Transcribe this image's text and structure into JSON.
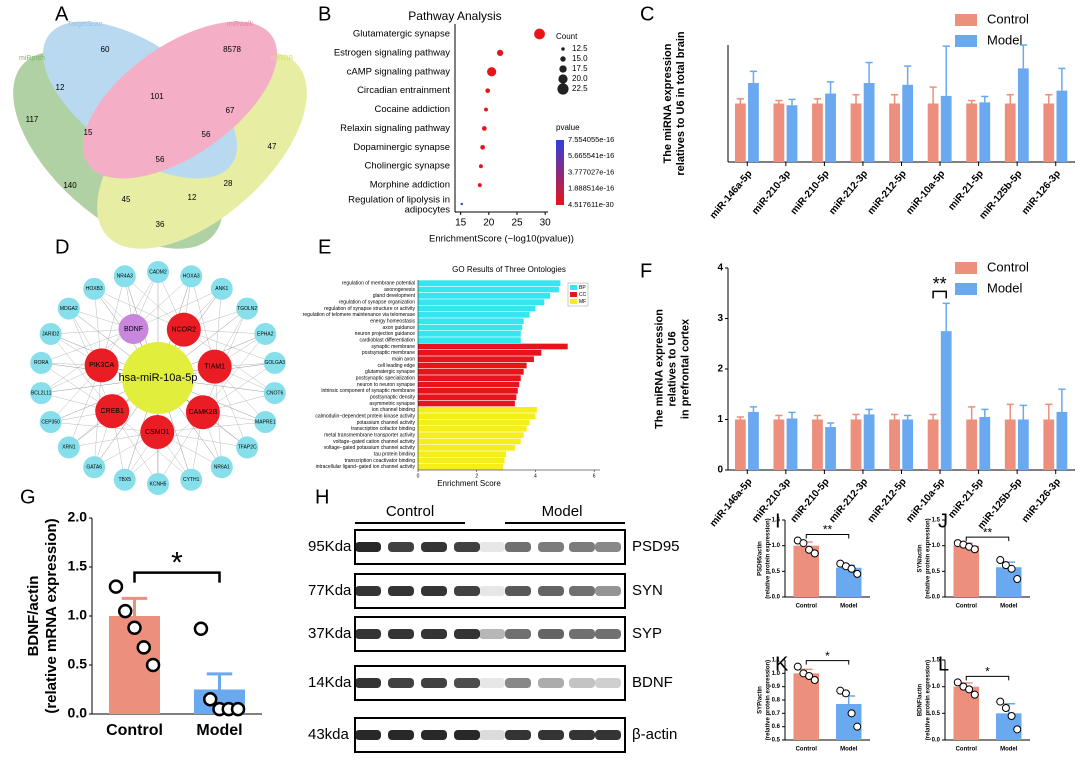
{
  "venn": {
    "label": "A",
    "sets": [
      "TargetScan",
      "miRwalk",
      "miRDB",
      "miRpath"
    ],
    "set_colors": [
      "#8fc3ea",
      "#ee7fa6",
      "#d9e36a",
      "#7fb56d"
    ],
    "regions": [
      60,
      8578,
      12,
      101,
      67,
      117,
      15,
      56,
      47,
      56,
      140,
      28,
      45,
      12,
      36
    ]
  },
  "network": {
    "label": "D",
    "center": "hsa-miR-10a-5p",
    "center_color": "#e2ee3c",
    "inner": [
      "BDNF",
      "NCOR2",
      "TIAM1",
      "CAMK2B",
      "CSMD1",
      "CREB1",
      "PIK3CA"
    ],
    "inner_colors": [
      "#c886dd",
      "#ea1c24",
      "#ea1c24",
      "#ea1c24",
      "#ea1c24",
      "#ea1c24",
      "#ea1c24"
    ],
    "outer": [
      "CADM2",
      "HOXA3",
      "ANK1",
      "TGOLN2",
      "EPHA2",
      "GOLGA3",
      "CNOT6",
      "MAPRE1",
      "TFAP2C",
      "NR6A1",
      "CYTH1",
      "KCNH5",
      "TBX5",
      "GATA6",
      "XRN1",
      "CEP350",
      "BCL2L11",
      "RORA",
      "JARID2",
      "MDGA2",
      "HOXB3",
      "NR4A3"
    ],
    "outer_color": "#86dfea"
  },
  "blot": {
    "label": "H",
    "groups": [
      "Control",
      "Model"
    ],
    "rows": [
      {
        "size": "95Kda",
        "protein": "PSD95"
      },
      {
        "size": "77Kda",
        "protein": "SYN"
      },
      {
        "size": "37Kda",
        "protein": "SYP"
      },
      {
        "size": "14Kda",
        "protein": "BDNF"
      },
      {
        "size": "43kda",
        "protein": "β-actin"
      }
    ]
  },
  "chart_data": [
    {
      "label": "B",
      "type": "dot",
      "title": "Pathway Analysis",
      "categories": [
        "Glutamatergic synapse",
        "Estrogen signaling pathway",
        "cAMP signaling pathway",
        "Circadian entrainment",
        "Cocaine addiction",
        "Relaxin signaling pathway",
        "Dopaminergic synapse",
        "Cholinergic synapse",
        "Morphine addiction",
        "Regulation of lipolysis in adipocytes"
      ],
      "values": [
        29,
        22,
        20.5,
        19.8,
        19.5,
        19.2,
        18.9,
        18.6,
        18.4,
        15.2
      ],
      "sizes": [
        22,
        16,
        20,
        14,
        13,
        14,
        14,
        13,
        13,
        11
      ],
      "pvalues": [
        4.517611e-30,
        1e-22,
        1e-21,
        1e-20,
        1e-20,
        1e-19,
        1e-19,
        1e-18,
        1e-18,
        7.554055e-16
      ],
      "xlabel": "EnrichmentScore (−log10(pvalue))",
      "xlim": [
        14,
        30.5
      ],
      "xticks": [
        15,
        20,
        25,
        30
      ],
      "size_legend_title": "Count",
      "size_ticks": [
        12.5,
        {
          "value": 15,
          "label": "15.0"
        },
        17.5,
        {
          "value": 20,
          "label": "20.0"
        },
        22.5
      ],
      "color_legend_title": "pvalue",
      "color_ticks": [
        7.554055e-16,
        5.665541e-16,
        3.777027e-16,
        1.888514e-16,
        4.517611e-30
      ],
      "color_range": [
        "#e8141b",
        "#2f3fe0"
      ]
    },
    {
      "label": "C",
      "type": "grouped_bar",
      "ylabel": [
        "The miRNA expression",
        "relatives to U6 in total brain"
      ],
      "categories": [
        "miR-146a-5p",
        "miR-210-3p",
        "miR-210-5p",
        "miR-212-3p",
        "miR-212-5p",
        "miR-10a-5p",
        "miR-21-5p",
        "miR-125b-5p",
        "miR-126-3p"
      ],
      "ylim": [
        0,
        2
      ],
      "series": [
        {
          "name": "Control",
          "color": "#ec8f7c",
          "values": [
            1,
            1,
            1,
            1,
            1,
            1,
            1,
            1,
            1
          ],
          "errors": [
            0.08,
            0.05,
            0.08,
            0.15,
            0.15,
            0.28,
            0.05,
            0.15,
            0.15
          ]
        },
        {
          "name": "Model",
          "color": "#6aa9f0",
          "values": [
            1.35,
            0.97,
            1.17,
            1.35,
            1.32,
            1.13,
            1.02,
            1.6,
            1.22
          ],
          "errors": [
            0.2,
            0.1,
            0.2,
            0.35,
            0.32,
            0.85,
            0.1,
            0.4,
            0.38
          ]
        }
      ]
    },
    {
      "label": "E",
      "type": "hbar",
      "title": "GO Results of Three Ontologies",
      "xlabel": "Enrichment Score",
      "xlim": [
        0,
        6.2
      ],
      "xticks": [
        0,
        2,
        4,
        6
      ],
      "series": [
        {
          "name": "BP",
          "color": "#33e6f0",
          "categories": [
            "regulation of membrane potential",
            "axonogenesis",
            "gland development",
            "regulation of synapse organization",
            "regulation of synapse structure or activity",
            "regulation of telomere maintenance via telomerase",
            "energy homeostasis",
            "axon guidance",
            "neuron projection guidance",
            "cardioblast differentiation"
          ],
          "values": [
            4.85,
            4.8,
            4.5,
            4.3,
            4.0,
            3.8,
            3.6,
            3.55,
            3.5,
            3.5
          ]
        },
        {
          "name": "CC",
          "color": "#e8141b",
          "categories": [
            "synaptic membrane",
            "postsynaptic membrane",
            "main axon",
            "cell leading edge",
            "glutamatergic synapse",
            "postsynaptic specialization",
            "neuron to neuron synapse",
            "intrinsic component of synaptic membrane",
            "postsynaptic density",
            "asymmetric synapse"
          ],
          "values": [
            5.1,
            4.2,
            3.95,
            3.7,
            3.6,
            3.5,
            3.45,
            3.4,
            3.35,
            3.3
          ]
        },
        {
          "name": "MF",
          "color": "#f5ee1a",
          "categories": [
            "ion channel binding",
            "calmodulin−dependent protein kinase activity",
            "potassium channel activity",
            "transcription cofactor binding",
            "metal transmembrane transporter activity",
            "voltage−gated cation channel activity",
            "voltage−gated potassium channel activity",
            "tau protein binding",
            "transcription coactivator binding",
            "intracellular ligand−gated ion channel activity"
          ],
          "values": [
            4.05,
            4.0,
            3.8,
            3.7,
            3.6,
            3.5,
            3.3,
            3.0,
            2.95,
            2.9
          ]
        }
      ]
    },
    {
      "label": "F",
      "type": "grouped_bar",
      "ylabel": [
        "The miRNA expression",
        "relatives to U6",
        "in prefrontal cortex"
      ],
      "categories": [
        "miR-146a-5p",
        "miR-210-3p",
        "miR-210-5p",
        "miR-212-3p",
        "miR-212-5p",
        "miR-10a-5p",
        "miR-21-5p",
        "miR-125b−5p",
        "miR-126-3p"
      ],
      "ylim": [
        0,
        4
      ],
      "yticks": [
        0,
        1,
        2,
        3,
        4
      ],
      "annotation": {
        "text": "**",
        "category": "miR-10a-5p"
      },
      "series": [
        {
          "name": "Control",
          "color": "#ec8f7c",
          "values": [
            1,
            1,
            1,
            1,
            1,
            1,
            1,
            1,
            1
          ],
          "errors": [
            0.05,
            0.08,
            0.08,
            0.1,
            0.1,
            0.1,
            0.25,
            0.3,
            0.3
          ]
        },
        {
          "name": "Model",
          "color": "#6aa9f0",
          "values": [
            1.15,
            1.02,
            0.85,
            1.1,
            1.0,
            2.75,
            1.05,
            1.0,
            1.15
          ],
          "errors": [
            0.1,
            0.12,
            0.08,
            0.1,
            0.08,
            0.55,
            0.15,
            0.28,
            0.45
          ]
        }
      ]
    },
    {
      "label": "G",
      "type": "bar",
      "ylabel": [
        "BDNF/actin",
        "(relative mRNA expression)"
      ],
      "categories": [
        "Control",
        "Model"
      ],
      "colors": [
        "#ec8f7c",
        "#6aa9f0"
      ],
      "values": [
        1.0,
        0.25
      ],
      "errors": [
        0.18,
        0.16
      ],
      "points": [
        [
          1.3,
          1.05,
          0.88,
          0.68,
          0.5
        ],
        [
          0.87,
          0.15,
          0.05,
          0.05,
          0.05
        ]
      ],
      "ylim": [
        0,
        2
      ],
      "yticks": [
        {
          "value": 0,
          "label": "0.0"
        },
        0.5,
        {
          "value": 1,
          "label": "1.0"
        },
        1.5,
        {
          "value": 2,
          "label": "2.0"
        }
      ],
      "annotation": "*"
    },
    {
      "label": "I",
      "type": "bar",
      "ylabel": [
        "PSD95/actin",
        "(relative protein expression)"
      ],
      "categories": [
        "Control",
        "Model"
      ],
      "colors": [
        "#ec8f7c",
        "#6aa9f0"
      ],
      "values": [
        1.0,
        0.57
      ],
      "errors": [
        0.07,
        0.05
      ],
      "points": [
        [
          1.1,
          1.05,
          0.92,
          0.85
        ],
        [
          0.65,
          0.6,
          0.55,
          0.45
        ]
      ],
      "ylim": [
        0,
        1.5
      ],
      "yticks": [
        {
          "value": 0,
          "label": "0.0"
        },
        0.5,
        {
          "value": 1,
          "label": "1.0"
        },
        1.5
      ],
      "annotation": "**"
    },
    {
      "label": "J",
      "type": "bar",
      "ylabel": [
        "SYN/actin",
        "(relative protein expression)"
      ],
      "categories": [
        "Control",
        "Model"
      ],
      "colors": [
        "#ec8f7c",
        "#6aa9f0"
      ],
      "values": [
        1.0,
        0.58
      ],
      "errors": [
        0.05,
        0.1
      ],
      "points": [
        [
          1.05,
          1.02,
          0.98,
          0.93
        ],
        [
          0.72,
          0.62,
          0.55,
          0.35
        ]
      ],
      "ylim": [
        0,
        1.5
      ],
      "yticks": [
        {
          "value": 0,
          "label": "0.0"
        },
        0.5,
        {
          "value": 1,
          "label": "1.0"
        },
        1.5
      ],
      "annotation": "**"
    },
    {
      "label": "K",
      "type": "bar",
      "ylabel": [
        "SYP/actin",
        "(relative protein expression)"
      ],
      "categories": [
        "Control",
        "Model"
      ],
      "colors": [
        "#ec8f7c",
        "#6aa9f0"
      ],
      "values": [
        1.0,
        0.77
      ],
      "errors": [
        0.03,
        0.06
      ],
      "points": [
        [
          1.05,
          1.0,
          0.98,
          0.95
        ],
        [
          0.87,
          0.85,
          0.7,
          0.6
        ]
      ],
      "ylim": [
        0.5,
        1.1
      ],
      "yticks": [
        0.5,
        0.6,
        0.7,
        0.8,
        0.9,
        {
          "value": 1,
          "label": "1.0"
        },
        1.1
      ],
      "annotation": "*"
    },
    {
      "label": "L",
      "type": "bar",
      "ylabel": [
        "BDNF/actin",
        "(relative protein expression)"
      ],
      "categories": [
        "Control",
        "Model"
      ],
      "colors": [
        "#ec8f7c",
        "#6aa9f0"
      ],
      "values": [
        1.0,
        0.5
      ],
      "errors": [
        0.07,
        0.18
      ],
      "points": [
        [
          1.08,
          1.0,
          0.95,
          0.85
        ],
        [
          0.72,
          0.6,
          0.45,
          0.2
        ]
      ],
      "ylim": [
        0,
        1.5
      ],
      "yticks": [
        {
          "value": 0,
          "label": "0.0"
        },
        0.5,
        {
          "value": 1,
          "label": "1.0"
        },
        1.5
      ],
      "annotation": "*"
    }
  ]
}
